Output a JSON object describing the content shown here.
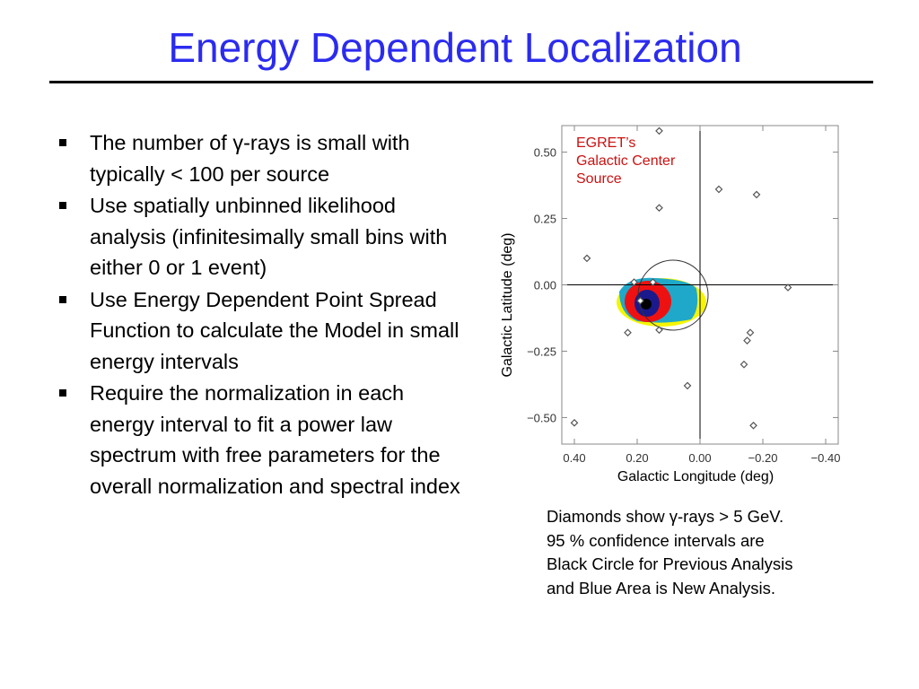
{
  "title": "Energy Dependent Localization",
  "bullets": [
    "The number of γ-rays is small with typically < 100 per source",
    "Use spatially unbinned likelihood analysis (infinitesimally small bins with either 0 or 1 event)",
    "Use Energy Dependent Point Spread Function to calculate the Model in small energy intervals",
    "Require the normalization in each energy interval to fit a power law spectrum with free parameters for the overall normalization and spectral index"
  ],
  "caption": [
    "Diamonds show γ-rays > 5 GeV.",
    "95 % confidence intervals are",
    "Black Circle for Previous Analysis",
    "and Blue Area is New Analysis."
  ],
  "chart_data": {
    "type": "scatter",
    "xlabel": "Galactic Longitude (deg)",
    "ylabel": "Galactic Latitude (deg)",
    "annotation": [
      "EGRET’s",
      "Galactic Center",
      "Source"
    ],
    "annotation_color": "#cc1111",
    "color": "#555555",
    "x": [
      0.13,
      0.13,
      -0.06,
      -0.18,
      0.36,
      -0.28,
      0.23,
      0.13,
      -0.16,
      -0.15,
      -0.14,
      0.04,
      -0.17,
      0.4,
      0.21,
      0.19,
      0.15
    ],
    "values": [
      0.58,
      0.29,
      0.36,
      0.34,
      0.1,
      -0.01,
      -0.18,
      -0.17,
      -0.18,
      -0.21,
      -0.3,
      -0.38,
      -0.53,
      -0.52,
      0.01,
      -0.06,
      0.01
    ],
    "xlim": [
      0.44,
      -0.44
    ],
    "ylim": [
      -0.6,
      0.6
    ],
    "xticks": [
      {
        "value": 0.4,
        "label": "0.40"
      },
      {
        "value": 0.2,
        "label": "0.20"
      },
      {
        "value": 0,
        "label": "0.00"
      },
      {
        "value": -0.2,
        "label": "−0.20"
      },
      {
        "value": -0.4,
        "label": "−0.40"
      }
    ],
    "yticks": [
      {
        "value": 0.5,
        "label": "0.50"
      },
      {
        "value": 0.25,
        "label": "0.25"
      },
      {
        "value": 0,
        "label": "0.00"
      },
      {
        "value": -0.25,
        "label": "−0.25"
      },
      {
        "value": -0.5,
        "label": "−0.50"
      }
    ]
  }
}
